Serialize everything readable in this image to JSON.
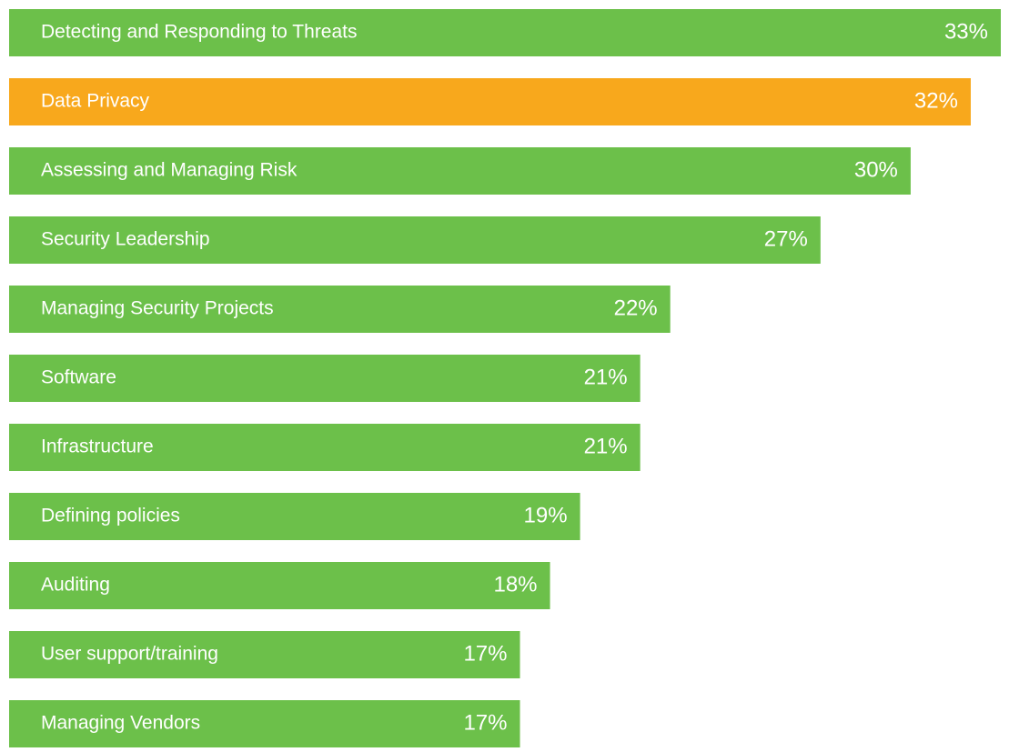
{
  "chart_data": {
    "type": "bar",
    "orientation": "horizontal",
    "categories": [
      "Detecting and Responding to Threats",
      "Data Privacy",
      "Assessing and Managing Risk",
      "Security Leadership",
      "Managing Security Projects",
      "Software",
      "Infrastructure",
      "Defining policies",
      "Auditing",
      "User support/training",
      "Managing Vendors"
    ],
    "values": [
      33,
      32,
      30,
      27,
      22,
      21,
      21,
      19,
      18,
      17,
      17
    ],
    "value_labels": [
      "33%",
      "32%",
      "30%",
      "27%",
      "22%",
      "21%",
      "21%",
      "19%",
      "18%",
      "17%",
      "17%"
    ],
    "colors": [
      "#6cc04a",
      "#f8a81c",
      "#6cc04a",
      "#6cc04a",
      "#6cc04a",
      "#6cc04a",
      "#6cc04a",
      "#6cc04a",
      "#6cc04a",
      "#6cc04a",
      "#6cc04a"
    ]
  }
}
